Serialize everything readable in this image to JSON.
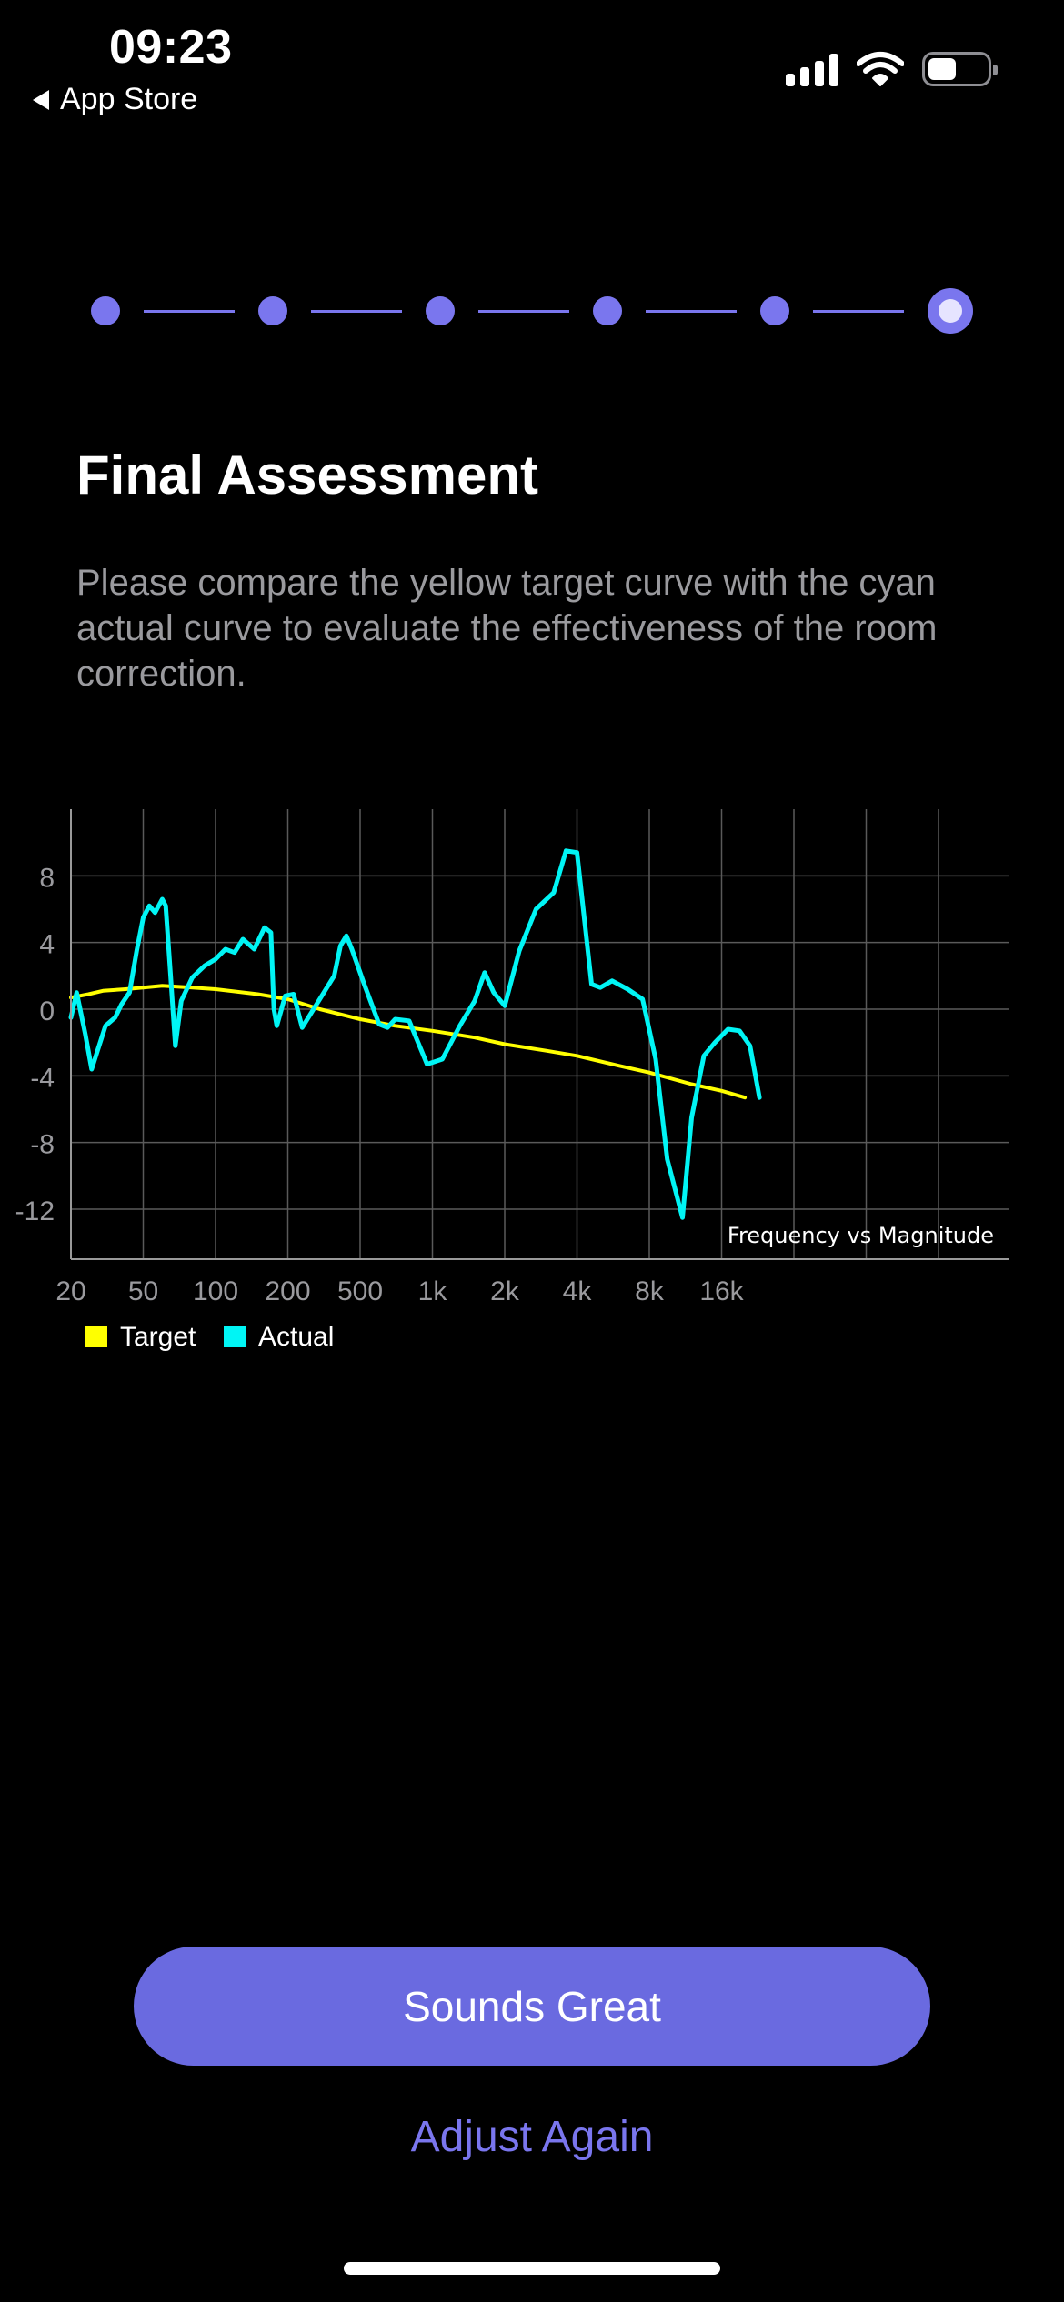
{
  "status_bar": {
    "time": "09:23",
    "back_label": "App Store"
  },
  "stepper": {
    "steps_total": 6,
    "current_step": 6
  },
  "page": {
    "title": "Final Assessment",
    "description": "Please compare the yellow target curve with the cyan actual curve to evaluate the effectiveness of the room correction."
  },
  "chart_data": {
    "type": "line",
    "title": "Frequency vs Magnitude",
    "x_scale": "log",
    "x_ticks": [
      {
        "label": "20",
        "value": 20
      },
      {
        "label": "50",
        "value": 50
      },
      {
        "label": "100",
        "value": 100
      },
      {
        "label": "200",
        "value": 200
      },
      {
        "label": "500",
        "value": 500
      },
      {
        "label": "1k",
        "value": 1000
      },
      {
        "label": "2k",
        "value": 2000
      },
      {
        "label": "4k",
        "value": 4000
      },
      {
        "label": "8k",
        "value": 8000
      },
      {
        "label": "16k",
        "value": 16000
      }
    ],
    "y_ticks": [
      8,
      4,
      0,
      -4,
      -8,
      -12
    ],
    "ylim": [
      -15,
      12
    ],
    "series": [
      {
        "name": "Target",
        "color": "#ffff00",
        "points": [
          [
            20,
            0.7
          ],
          [
            25,
            0.9
          ],
          [
            30,
            1.1
          ],
          [
            40,
            1.2
          ],
          [
            50,
            1.3
          ],
          [
            60,
            1.4
          ],
          [
            80,
            1.3
          ],
          [
            100,
            1.2
          ],
          [
            150,
            0.9
          ],
          [
            200,
            0.6
          ],
          [
            300,
            0.0
          ],
          [
            500,
            -0.6
          ],
          [
            700,
            -1.0
          ],
          [
            1000,
            -1.3
          ],
          [
            1500,
            -1.7
          ],
          [
            2000,
            -2.1
          ],
          [
            3000,
            -2.5
          ],
          [
            4000,
            -2.8
          ],
          [
            6000,
            -3.4
          ],
          [
            8000,
            -3.8
          ],
          [
            12000,
            -4.5
          ],
          [
            16000,
            -4.9
          ],
          [
            20000,
            -5.3
          ]
        ]
      },
      {
        "name": "Actual",
        "color": "#00f5f5",
        "points": [
          [
            20,
            -0.5
          ],
          [
            21.5,
            1.0
          ],
          [
            24,
            -1.5
          ],
          [
            26,
            -3.6
          ],
          [
            28,
            -2.5
          ],
          [
            31,
            -1.0
          ],
          [
            35,
            -0.5
          ],
          [
            38,
            0.3
          ],
          [
            42,
            1.0
          ],
          [
            46,
            3.5
          ],
          [
            50,
            5.5
          ],
          [
            53,
            6.2
          ],
          [
            56,
            5.8
          ],
          [
            60,
            6.6
          ],
          [
            62,
            6.2
          ],
          [
            65,
            2.0
          ],
          [
            68,
            -2.2
          ],
          [
            72,
            0.5
          ],
          [
            80,
            1.9
          ],
          [
            90,
            2.6
          ],
          [
            100,
            3.0
          ],
          [
            110,
            3.6
          ],
          [
            120,
            3.4
          ],
          [
            130,
            4.2
          ],
          [
            145,
            3.6
          ],
          [
            160,
            4.9
          ],
          [
            170,
            4.6
          ],
          [
            175,
            0.0
          ],
          [
            180,
            -1.0
          ],
          [
            195,
            0.8
          ],
          [
            215,
            0.9
          ],
          [
            240,
            -1.1
          ],
          [
            270,
            -0.2
          ],
          [
            320,
            1.1
          ],
          [
            360,
            2.0
          ],
          [
            390,
            3.8
          ],
          [
            420,
            4.4
          ],
          [
            450,
            3.6
          ],
          [
            520,
            1.5
          ],
          [
            600,
            -0.9
          ],
          [
            650,
            -1.1
          ],
          [
            700,
            -0.6
          ],
          [
            800,
            -0.7
          ],
          [
            950,
            -3.3
          ],
          [
            1100,
            -3.0
          ],
          [
            1300,
            -1.0
          ],
          [
            1500,
            0.5
          ],
          [
            1650,
            2.2
          ],
          [
            1800,
            1.0
          ],
          [
            2000,
            0.2
          ],
          [
            2300,
            3.5
          ],
          [
            2700,
            6.0
          ],
          [
            3200,
            7.0
          ],
          [
            3600,
            9.5
          ],
          [
            4000,
            9.4
          ],
          [
            4600,
            1.5
          ],
          [
            5000,
            1.3
          ],
          [
            5600,
            1.7
          ],
          [
            6500,
            1.2
          ],
          [
            7500,
            0.6
          ],
          [
            8500,
            -3.0
          ],
          [
            9500,
            -9.0
          ],
          [
            11000,
            -12.5
          ],
          [
            12000,
            -6.5
          ],
          [
            13500,
            -2.8
          ],
          [
            15000,
            -2.0
          ],
          [
            17000,
            -1.2
          ],
          [
            19000,
            -1.3
          ],
          [
            21000,
            -2.2
          ],
          [
            23000,
            -5.3
          ]
        ]
      }
    ],
    "legend": [
      {
        "label": "Target",
        "color": "#ffff00"
      },
      {
        "label": "Actual",
        "color": "#00f5f5"
      }
    ],
    "grid": true
  },
  "buttons": {
    "primary_label": "Sounds Great",
    "secondary_label": "Adjust Again"
  }
}
